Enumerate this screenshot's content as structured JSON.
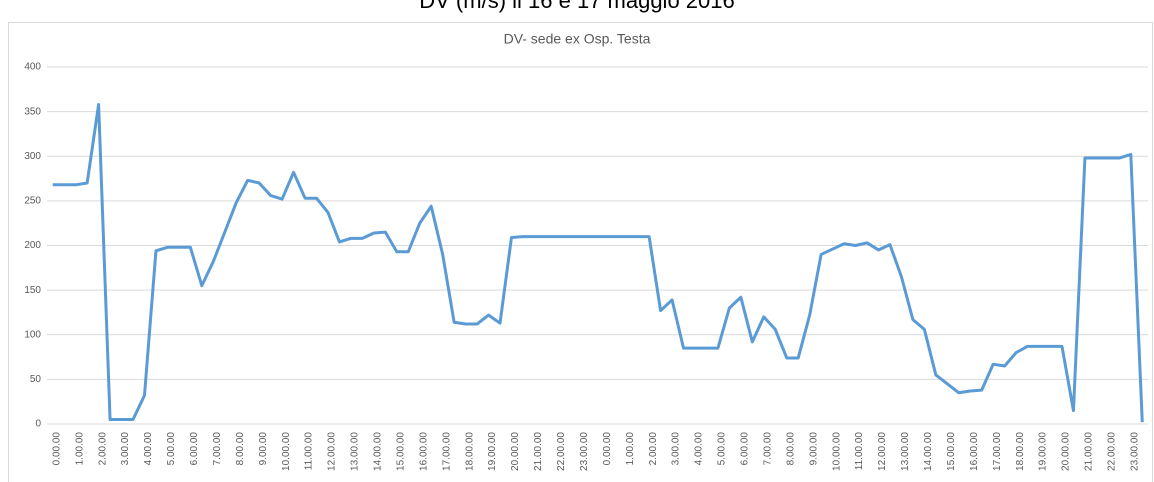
{
  "title": "DV (m/s) il 16 e 17 maggio 2016",
  "chart_data": {
    "type": "line",
    "title": "DV- sede ex Osp. Testa",
    "categories": [
      "0.00.00",
      null,
      "1.00.00",
      null,
      "2.00.00",
      null,
      "3.00.00",
      null,
      "4.00.00",
      null,
      "5.00.00",
      null,
      "6.00.00",
      null,
      "7.00.00",
      null,
      "8.00.00",
      null,
      "9.00.00",
      null,
      "10.00.00",
      null,
      "11.00.00",
      null,
      "12.00.00",
      null,
      "13.00.00",
      null,
      "14.00.00",
      null,
      "15.00.00",
      null,
      "16.00.00",
      null,
      "17.00.00",
      null,
      "18.00.00",
      null,
      "19.00.00",
      null,
      "20.00.00",
      null,
      "21.00.00",
      null,
      "22.00.00",
      null,
      "23.00.00",
      null,
      "0.00.00",
      null,
      "1.00.00",
      null,
      "2.00.00",
      null,
      "3.00.00",
      null,
      "4.00.00",
      null,
      "5.00.00",
      null,
      "6.00.00",
      null,
      "7.00.00",
      null,
      "8.00.00",
      null,
      "9.00.00",
      null,
      "10.00.00",
      null,
      "11.00.00",
      null,
      "12.00.00",
      null,
      "13.00.00",
      null,
      "14.00.00",
      null,
      "15.00.00",
      null,
      "16.00.00",
      null,
      "17.00.00",
      null,
      "18.00.00",
      null,
      "19.00.00",
      null,
      "20.00.00",
      null,
      "21.00.00",
      null,
      "22.00.00",
      null,
      "23.00.00",
      null
    ],
    "series": [
      {
        "name": "DV",
        "color": "#5b9bd5",
        "values": [
          268,
          268,
          268,
          270,
          358,
          5,
          5,
          5,
          32,
          194,
          198,
          198,
          198,
          155,
          182,
          215,
          248,
          273,
          270,
          256,
          252,
          282,
          253,
          253,
          237,
          204,
          208,
          208,
          214,
          215,
          193,
          193,
          225,
          244,
          190,
          114,
          112,
          112,
          122,
          113,
          209,
          210,
          210,
          210,
          210,
          210,
          210,
          210,
          210,
          210,
          210,
          210,
          210,
          127,
          139,
          85,
          85,
          85,
          85,
          130,
          142,
          92,
          120,
          106,
          74,
          74,
          122,
          190,
          196,
          202,
          200,
          203,
          195,
          201,
          165,
          117,
          106,
          55,
          45,
          35,
          37,
          38,
          67,
          65,
          80,
          87,
          87,
          87,
          87,
          15,
          298,
          298,
          298,
          298,
          302,
          2
        ]
      }
    ],
    "ylim": [
      0,
      400
    ],
    "yticks": [
      0,
      50,
      100,
      150,
      200,
      250,
      300,
      350,
      400
    ],
    "grid": true
  }
}
